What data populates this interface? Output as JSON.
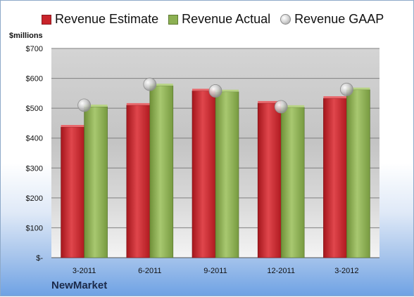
{
  "chart_data": {
    "type": "bar",
    "categories": [
      "3-2011",
      "6-2011",
      "9-2011",
      "12-2011",
      "3-2012"
    ],
    "series": [
      {
        "name": "Revenue Estimate",
        "values": [
          437,
          510,
          558,
          517,
          533
        ],
        "color": "#c9242b"
      },
      {
        "name": "Revenue Actual",
        "values": [
          505,
          575,
          555,
          503,
          562
        ],
        "color": "#8cb052"
      }
    ],
    "markers": {
      "name": "Revenue GAAP",
      "values": [
        510,
        580,
        558,
        505,
        563
      ]
    },
    "ylabel": "$millions",
    "ylim": [
      0,
      700
    ],
    "yticks": [
      0,
      100,
      200,
      300,
      400,
      500,
      600,
      700
    ],
    "ytick_labels": [
      "$-",
      "$100",
      "$200",
      "$300",
      "$400",
      "$500",
      "$600",
      "$700"
    ],
    "grid": true,
    "legend": "top",
    "company": "NewMarket"
  }
}
